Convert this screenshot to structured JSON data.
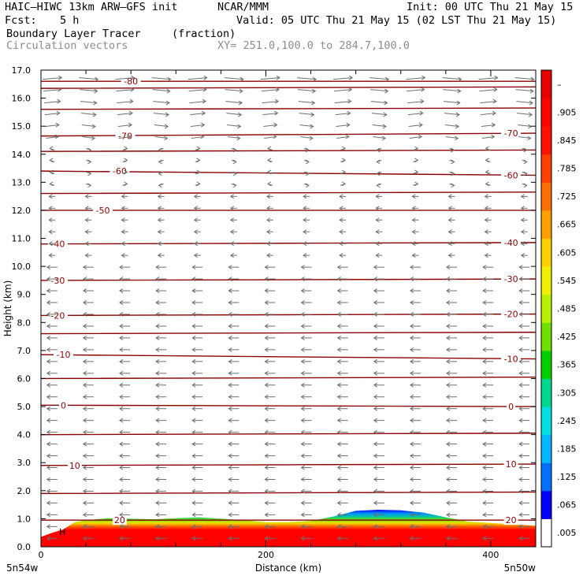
{
  "header": {
    "model": "HAIC–HIWC 13km ARW–GFS init",
    "org": "NCAR/MMM",
    "init": "Init: 00 UTC Thu 21 May 15",
    "fcst_label": "Fcst:",
    "fcst_value": "5 h",
    "valid": "Valid: 05 UTC Thu 21 May 15 (02 LST Thu 21 May 15)",
    "field_name": "Boundary Layer Tracer",
    "field_units": "(fraction)",
    "vectors_label": "Circulation vectors",
    "xy_range": "XY= 251.0,100.0 to 284.7,100.0"
  },
  "chart_data": {
    "type": "heatmap",
    "title": "Boundary Layer Tracer",
    "xlabel": "Distance (km)",
    "ylabel": "Height (km)",
    "xlim": [
      0,
      440
    ],
    "ylim": [
      0,
      17
    ],
    "x_ticks": [
      0,
      200,
      400
    ],
    "y_ticks": [
      "0.0",
      "1.0",
      "2.0",
      "3.0",
      "4.0",
      "5.0",
      "6.0",
      "7.0",
      "8.0",
      "9.0",
      "10.0",
      "11.0",
      "12.0",
      "13.0",
      "14.0",
      "15.0",
      "16.0",
      "17.0"
    ],
    "x_end_labels": {
      "left": "5n54w",
      "right": "5n50w"
    },
    "surface_high_marker": "H",
    "tracer_top_km": [
      [
        0,
        0.35
      ],
      [
        10,
        0.5
      ],
      [
        20,
        0.62
      ],
      [
        30,
        0.88
      ],
      [
        40,
        0.95
      ],
      [
        60,
        1.02
      ],
      [
        80,
        1.0
      ],
      [
        100,
        0.98
      ],
      [
        120,
        1.02
      ],
      [
        140,
        1.05
      ],
      [
        160,
        1.0
      ],
      [
        180,
        0.95
      ],
      [
        200,
        0.88
      ],
      [
        220,
        0.88
      ],
      [
        240,
        0.92
      ],
      [
        260,
        1.08
      ],
      [
        280,
        1.28
      ],
      [
        300,
        1.32
      ],
      [
        320,
        1.3
      ],
      [
        340,
        1.22
      ],
      [
        360,
        1.05
      ],
      [
        380,
        0.9
      ],
      [
        400,
        0.85
      ],
      [
        420,
        0.8
      ],
      [
        440,
        0.75
      ]
    ],
    "temperature_contours_degC": {
      "color": "#8b0000",
      "levels": [
        {
          "label": "20",
          "x": 70,
          "height_km": 0.95
        },
        {
          "label": "10",
          "x": 30,
          "height_km": 2.9
        },
        {
          "label": "0",
          "x": 20,
          "height_km": 5.05
        },
        {
          "label": "-10",
          "x": 20,
          "height_km": 6.85
        },
        {
          "label": "-20",
          "x": 15,
          "height_km": 8.25
        },
        {
          "label": "-30",
          "x": 15,
          "height_km": 9.5
        },
        {
          "label": "-40",
          "x": 15,
          "height_km": 10.8
        },
        {
          "label": "-50",
          "x": 55,
          "height_km": 12.0
        },
        {
          "label": "-60",
          "x": 70,
          "height_km": 13.4
        },
        {
          "label": "-70",
          "x": 75,
          "height_km": 14.65
        },
        {
          "label": "-80",
          "x": 80,
          "height_km": 16.6
        }
      ],
      "right_labels": [
        {
          "label": "20",
          "height_km": 0.95
        },
        {
          "label": "10",
          "height_km": 2.95
        },
        {
          "label": "0",
          "height_km": 5.0
        },
        {
          "label": "-10",
          "height_km": 6.7
        },
        {
          "label": "-20",
          "height_km": 8.3
        },
        {
          "label": "-30",
          "height_km": 9.55
        },
        {
          "label": "-40",
          "height_km": 10.85
        },
        {
          "label": "-60",
          "height_km": 13.25
        },
        {
          "label": "-70",
          "height_km": 14.75
        }
      ]
    },
    "colorbar": {
      "labels": [
        ".005",
        ".065",
        ".125",
        ".185",
        ".245",
        ".305",
        ".365",
        ".425",
        ".485",
        ".545",
        ".605",
        ".665",
        ".725",
        ".785",
        ".845",
        ".905",
        "–"
      ],
      "colors": [
        "#ffffff",
        "#0000ff",
        "#0070ff",
        "#00b8ff",
        "#00e0e0",
        "#00d890",
        "#00d000",
        "#70e000",
        "#b8f000",
        "#f0f000",
        "#ffd000",
        "#ffa000",
        "#ff7000",
        "#ff4000",
        "#ff1000",
        "#ff0000",
        "#e80000"
      ]
    }
  }
}
